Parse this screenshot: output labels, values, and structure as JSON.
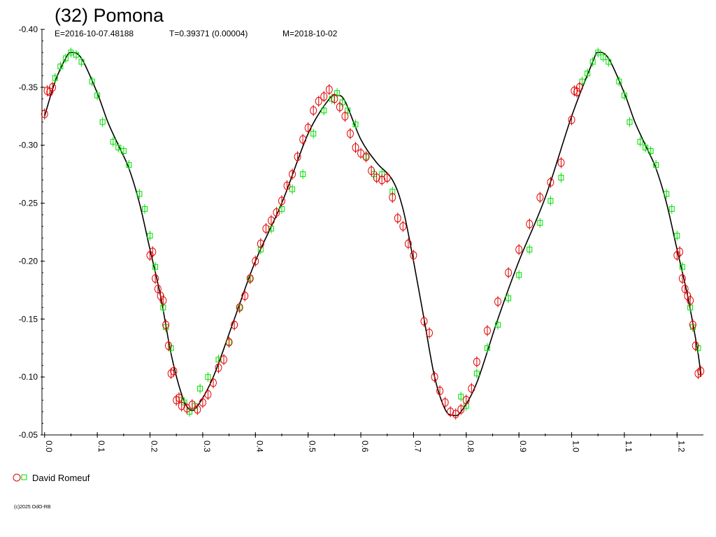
{
  "chart_data": {
    "type": "scatter",
    "title": "(32) Pomona",
    "subtitle": {
      "epoch": "E=2016-10-07.48188",
      "period": "T=0.39371 (0.00004)",
      "mag": "M=2018-10-02"
    },
    "xlabel": "",
    "ylabel": "",
    "xlim": [
      -0.005,
      1.25
    ],
    "ylim": [
      -0.05,
      -0.4
    ],
    "y_inverted": true,
    "x_ticks": [
      "0.0",
      "0.1",
      "0.2",
      "0.3",
      "0.4",
      "0.5",
      "0.6",
      "0.7",
      "0.8",
      "0.9",
      "1.0",
      "1.1",
      "1.2"
    ],
    "x_tick_values": [
      0.0,
      0.1,
      0.2,
      0.3,
      0.4,
      0.5,
      0.6,
      0.7,
      0.8,
      0.9,
      1.0,
      1.1,
      1.2
    ],
    "y_ticks": [
      "-0.05",
      "-0.10",
      "-0.15",
      "-0.20",
      "-0.25",
      "-0.30",
      "-0.35",
      "-0.40"
    ],
    "y_tick_values": [
      -0.05,
      -0.1,
      -0.15,
      -0.2,
      -0.25,
      -0.3,
      -0.35,
      -0.4
    ],
    "fit_curve": {
      "x": [
        0.0,
        0.02,
        0.04,
        0.05,
        0.07,
        0.1,
        0.12,
        0.14,
        0.16,
        0.18,
        0.2,
        0.22,
        0.24,
        0.26,
        0.275,
        0.29,
        0.32,
        0.36,
        0.4,
        0.45,
        0.5,
        0.54,
        0.555,
        0.57,
        0.6,
        0.63,
        0.66,
        0.68,
        0.7,
        0.72,
        0.74,
        0.76,
        0.775,
        0.79,
        0.82,
        0.86,
        0.9,
        0.95,
        1.0,
        1.04,
        1.05,
        1.07,
        1.1,
        1.12,
        1.14,
        1.16,
        1.18,
        1.2,
        1.22,
        1.24,
        1.245
      ],
      "y": [
        -0.325,
        -0.355,
        -0.375,
        -0.38,
        -0.375,
        -0.345,
        -0.32,
        -0.3,
        -0.28,
        -0.25,
        -0.21,
        -0.17,
        -0.12,
        -0.085,
        -0.072,
        -0.075,
        -0.1,
        -0.15,
        -0.2,
        -0.25,
        -0.31,
        -0.34,
        -0.343,
        -0.338,
        -0.305,
        -0.285,
        -0.27,
        -0.245,
        -0.2,
        -0.15,
        -0.1,
        -0.072,
        -0.067,
        -0.07,
        -0.095,
        -0.15,
        -0.2,
        -0.255,
        -0.325,
        -0.372,
        -0.38,
        -0.375,
        -0.345,
        -0.32,
        -0.3,
        -0.28,
        -0.25,
        -0.21,
        -0.17,
        -0.12,
        -0.1
      ]
    },
    "series": [
      {
        "name": "David Romeuf",
        "marker": "circle",
        "color": "#e00000",
        "x": [
          0.0,
          0.005,
          0.01,
          0.015,
          0.2,
          0.205,
          0.21,
          0.215,
          0.22,
          0.225,
          0.23,
          0.235,
          0.24,
          0.245,
          0.25,
          0.255,
          0.26,
          0.27,
          0.28,
          0.29,
          0.3,
          0.31,
          0.32,
          0.33,
          0.34,
          0.35,
          0.36,
          0.37,
          0.38,
          0.39,
          0.4,
          0.41,
          0.42,
          0.43,
          0.44,
          0.45,
          0.46,
          0.47,
          0.48,
          0.49,
          0.5,
          0.51,
          0.52,
          0.53,
          0.54,
          0.55,
          0.56,
          0.57,
          0.58,
          0.59,
          0.6,
          0.61,
          0.62,
          0.63,
          0.64,
          0.65,
          0.66,
          0.67,
          0.68,
          0.69,
          0.7,
          0.72,
          0.73,
          0.74,
          0.75,
          0.76,
          0.77,
          0.78,
          0.79,
          0.8,
          0.81,
          0.82,
          0.84,
          0.86,
          0.88,
          0.9,
          0.92,
          0.94,
          0.96,
          0.98,
          1.0,
          1.005,
          1.01,
          1.015,
          1.2,
          1.205,
          1.21,
          1.215,
          1.22,
          1.225,
          1.23,
          1.235,
          1.24,
          1.245
        ],
        "y": [
          -0.327,
          -0.347,
          -0.346,
          -0.35,
          -0.205,
          -0.208,
          -0.185,
          -0.176,
          -0.17,
          -0.166,
          -0.145,
          -0.127,
          -0.103,
          -0.105,
          -0.08,
          -0.082,
          -0.075,
          -0.073,
          -0.076,
          -0.072,
          -0.078,
          -0.085,
          -0.095,
          -0.108,
          -0.115,
          -0.13,
          -0.145,
          -0.16,
          -0.17,
          -0.185,
          -0.2,
          -0.215,
          -0.228,
          -0.235,
          -0.242,
          -0.252,
          -0.265,
          -0.275,
          -0.29,
          -0.305,
          -0.315,
          -0.33,
          -0.338,
          -0.342,
          -0.348,
          -0.34,
          -0.333,
          -0.325,
          -0.31,
          -0.298,
          -0.293,
          -0.29,
          -0.278,
          -0.272,
          -0.27,
          -0.272,
          -0.255,
          -0.237,
          -0.23,
          -0.215,
          -0.205,
          -0.148,
          -0.138,
          -0.1,
          -0.088,
          -0.078,
          -0.07,
          -0.068,
          -0.072,
          -0.08,
          -0.09,
          -0.113,
          -0.14,
          -0.165,
          -0.19,
          -0.21,
          -0.232,
          -0.255,
          -0.268,
          -0.285,
          -0.322,
          -0.347,
          -0.346,
          -0.35,
          -0.205,
          -0.208,
          -0.185,
          -0.176,
          -0.17,
          -0.166,
          -0.145,
          -0.127,
          -0.103,
          -0.105
        ]
      },
      {
        "name": "David Romeuf",
        "marker": "square",
        "color": "#00dd00",
        "x": [
          0.02,
          0.03,
          0.04,
          0.05,
          0.06,
          0.07,
          0.09,
          0.1,
          0.11,
          0.13,
          0.14,
          0.15,
          0.16,
          0.18,
          0.19,
          0.2,
          0.21,
          0.225,
          0.23,
          0.24,
          0.26,
          0.265,
          0.275,
          0.285,
          0.295,
          0.31,
          0.33,
          0.35,
          0.37,
          0.39,
          0.41,
          0.43,
          0.45,
          0.47,
          0.49,
          0.51,
          0.53,
          0.545,
          0.555,
          0.565,
          0.575,
          0.59,
          0.61,
          0.625,
          0.64,
          0.66,
          0.79,
          0.8,
          0.82,
          0.84,
          0.86,
          0.88,
          0.9,
          0.92,
          0.94,
          0.96,
          0.98,
          1.02,
          1.03,
          1.04,
          1.05,
          1.06,
          1.07,
          1.09,
          1.1,
          1.11,
          1.13,
          1.14,
          1.15,
          1.16,
          1.18,
          1.19,
          1.2,
          1.21,
          1.225,
          1.23,
          1.24
        ],
        "y": [
          -0.358,
          -0.368,
          -0.375,
          -0.38,
          -0.378,
          -0.372,
          -0.355,
          -0.343,
          -0.32,
          -0.303,
          -0.298,
          -0.295,
          -0.283,
          -0.258,
          -0.245,
          -0.222,
          -0.195,
          -0.16,
          -0.143,
          -0.125,
          -0.08,
          -0.078,
          -0.07,
          -0.075,
          -0.09,
          -0.1,
          -0.115,
          -0.13,
          -0.16,
          -0.185,
          -0.21,
          -0.228,
          -0.245,
          -0.262,
          -0.275,
          -0.31,
          -0.33,
          -0.34,
          -0.345,
          -0.337,
          -0.33,
          -0.318,
          -0.29,
          -0.275,
          -0.275,
          -0.26,
          -0.083,
          -0.075,
          -0.103,
          -0.125,
          -0.145,
          -0.168,
          -0.188,
          -0.21,
          -0.233,
          -0.252,
          -0.272,
          -0.355,
          -0.362,
          -0.372,
          -0.38,
          -0.376,
          -0.372,
          -0.355,
          -0.343,
          -0.32,
          -0.303,
          -0.298,
          -0.295,
          -0.283,
          -0.258,
          -0.245,
          -0.222,
          -0.195,
          -0.16,
          -0.143,
          -0.125
        ]
      }
    ],
    "legend": {
      "label": "David Romeuf",
      "placement": "bottom-left"
    },
    "grid": false
  },
  "footer": {
    "copyright": "(c)2025 OdO-RB"
  }
}
